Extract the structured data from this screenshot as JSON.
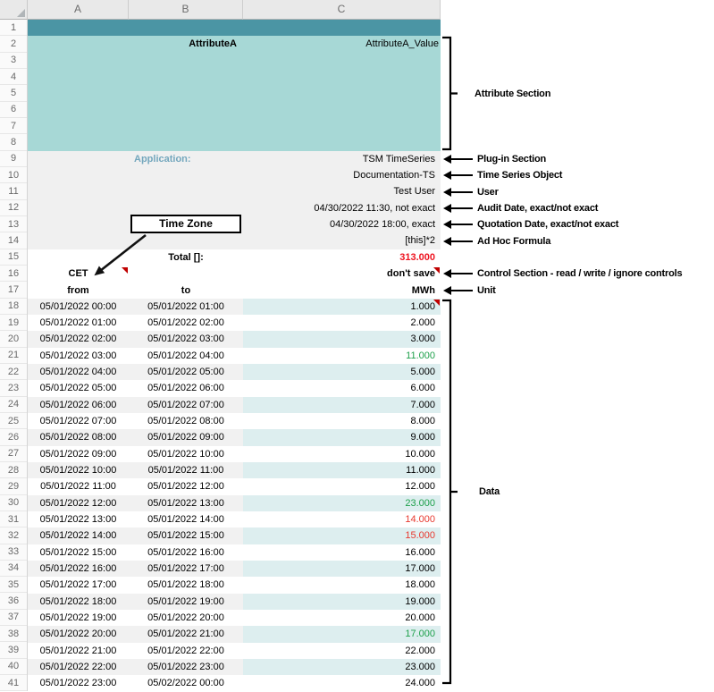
{
  "sheet": {
    "column_headers": [
      "A",
      "B",
      "C"
    ],
    "row_numbers": {
      "first": 1,
      "last": 41
    },
    "attribute_section": {
      "attribute_label": "AttributeA",
      "attribute_value": "AttributeA_Value"
    },
    "plugin_section": {
      "application_label": "Application:",
      "application_value": "TSM TimeSeries",
      "time_series_object": "Documentation-TS",
      "user": "Test User",
      "audit_date": "04/30/2022 11:30, not exact",
      "quotation_date": "04/30/2022 18:00, exact",
      "ad_hoc_formula": "[this]*2"
    },
    "control_section": {
      "total_label": "Total []:",
      "total_value": "313.000",
      "time_zone": "CET",
      "save_mode": "don't save",
      "from_header": "from",
      "to_header": "to",
      "unit": "MWh"
    },
    "data_rows": [
      {
        "from": "05/01/2022 00:00",
        "to": "05/01/2022 01:00",
        "value": "1.000",
        "color": "default"
      },
      {
        "from": "05/01/2022 01:00",
        "to": "05/01/2022 02:00",
        "value": "2.000",
        "color": "default"
      },
      {
        "from": "05/01/2022 02:00",
        "to": "05/01/2022 03:00",
        "value": "3.000",
        "color": "default"
      },
      {
        "from": "05/01/2022 03:00",
        "to": "05/01/2022 04:00",
        "value": "11.000",
        "color": "green"
      },
      {
        "from": "05/01/2022 04:00",
        "to": "05/01/2022 05:00",
        "value": "5.000",
        "color": "default"
      },
      {
        "from": "05/01/2022 05:00",
        "to": "05/01/2022 06:00",
        "value": "6.000",
        "color": "default"
      },
      {
        "from": "05/01/2022 06:00",
        "to": "05/01/2022 07:00",
        "value": "7.000",
        "color": "default"
      },
      {
        "from": "05/01/2022 07:00",
        "to": "05/01/2022 08:00",
        "value": "8.000",
        "color": "default"
      },
      {
        "from": "05/01/2022 08:00",
        "to": "05/01/2022 09:00",
        "value": "9.000",
        "color": "default"
      },
      {
        "from": "05/01/2022 09:00",
        "to": "05/01/2022 10:00",
        "value": "10.000",
        "color": "default"
      },
      {
        "from": "05/01/2022 10:00",
        "to": "05/01/2022 11:00",
        "value": "11.000",
        "color": "default"
      },
      {
        "from": "05/01/2022 11:00",
        "to": "05/01/2022 12:00",
        "value": "12.000",
        "color": "default"
      },
      {
        "from": "05/01/2022 12:00",
        "to": "05/01/2022 13:00",
        "value": "23.000",
        "color": "green"
      },
      {
        "from": "05/01/2022 13:00",
        "to": "05/01/2022 14:00",
        "value": "14.000",
        "color": "red"
      },
      {
        "from": "05/01/2022 14:00",
        "to": "05/01/2022 15:00",
        "value": "15.000",
        "color": "red"
      },
      {
        "from": "05/01/2022 15:00",
        "to": "05/01/2022 16:00",
        "value": "16.000",
        "color": "default"
      },
      {
        "from": "05/01/2022 16:00",
        "to": "05/01/2022 17:00",
        "value": "17.000",
        "color": "default"
      },
      {
        "from": "05/01/2022 17:00",
        "to": "05/01/2022 18:00",
        "value": "18.000",
        "color": "default"
      },
      {
        "from": "05/01/2022 18:00",
        "to": "05/01/2022 19:00",
        "value": "19.000",
        "color": "default"
      },
      {
        "from": "05/01/2022 19:00",
        "to": "05/01/2022 20:00",
        "value": "20.000",
        "color": "default"
      },
      {
        "from": "05/01/2022 20:00",
        "to": "05/01/2022 21:00",
        "value": "17.000",
        "color": "green"
      },
      {
        "from": "05/01/2022 21:00",
        "to": "05/01/2022 22:00",
        "value": "22.000",
        "color": "default"
      },
      {
        "from": "05/01/2022 22:00",
        "to": "05/01/2022 23:00",
        "value": "23.000",
        "color": "default"
      },
      {
        "from": "05/01/2022 23:00",
        "to": "05/02/2022 00:00",
        "value": "24.000",
        "color": "default"
      }
    ]
  },
  "callout": {
    "time_zone_label": "Time Zone"
  },
  "annotations": {
    "attribute_section": "Attribute Section",
    "plugin_section": "Plug-in Section",
    "time_series_object": "Time Series Object",
    "user": "User",
    "audit_date": "Audit Date, exact/not exact",
    "quotation_date": "Quotation Date, exact/not exact",
    "ad_hoc_formula": "Ad Hoc Formula",
    "control_section": "Control Section - read / write / ignore controls",
    "unit": "Unit",
    "data": "Data"
  },
  "colors": {
    "band_teal": "#4b95a4",
    "attribute_teal": "#a7d8d6",
    "value_teal": "#ddeeef",
    "stripe_gray": "#f1f1f1",
    "meta_gray": "#f0f0f0",
    "application_blue": "#74a7bd",
    "negative_red": "#e8392f",
    "positive_green": "#1ea04b",
    "total_red": "#ee1420",
    "comment_red": "#c00000"
  }
}
